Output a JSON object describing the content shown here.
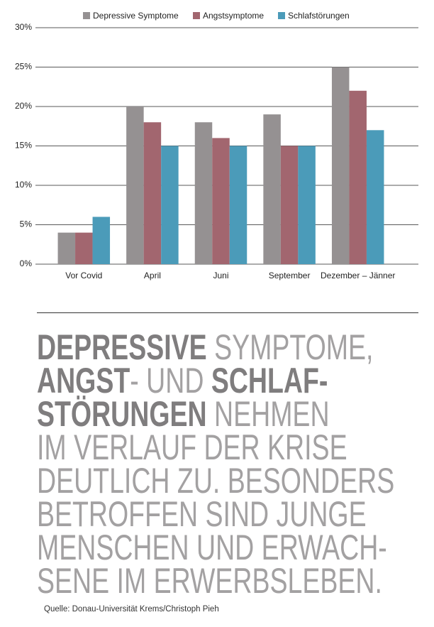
{
  "chart_data": {
    "type": "bar",
    "categories": [
      "Vor Covid",
      "April",
      "Juni",
      "September",
      "Dezember – Jänner"
    ],
    "series": [
      {
        "name": "Depressive Symptome",
        "color": "#959192",
        "values": [
          4,
          20,
          18,
          19,
          25
        ]
      },
      {
        "name": "Angstsymptome",
        "color": "#a2666f",
        "values": [
          4,
          18,
          16,
          15,
          22
        ]
      },
      {
        "name": "Schlafstörungen",
        "color": "#4b9bb9",
        "values": [
          6,
          15,
          15,
          15,
          17
        ]
      }
    ],
    "ylim": [
      0,
      30
    ],
    "yticks": [
      {
        "value": 0,
        "label": "0%"
      },
      {
        "value": 5,
        "label": "5%"
      },
      {
        "value": 10,
        "label": "10%"
      },
      {
        "value": 15,
        "label": "15%"
      },
      {
        "value": 20,
        "label": "20%"
      },
      {
        "value": 25,
        "label": "25%"
      },
      {
        "value": 30,
        "label": "30%"
      }
    ],
    "grid": true,
    "legend": "top"
  },
  "headline": {
    "lines": [
      [
        {
          "text": "DEPRESSIVE",
          "bold": true
        },
        {
          "text": " SYMPTOME,",
          "bold": false
        }
      ],
      [
        {
          "text": "ANGST",
          "bold": true
        },
        {
          "text": "- UND ",
          "bold": false
        },
        {
          "text": "SCHLAF-",
          "bold": true
        }
      ],
      [
        {
          "text": "STÖRUNGEN",
          "bold": true
        },
        {
          "text": " NEHMEN",
          "bold": false
        }
      ],
      [
        {
          "text": "IM VERLAUF DER KRISE",
          "bold": false
        }
      ],
      [
        {
          "text": "DEUTLICH ZU. BESONDERS",
          "bold": false
        }
      ],
      [
        {
          "text": "BETROFFEN SIND JUNGE",
          "bold": false
        }
      ],
      [
        {
          "text": "MENSCHEN UND ERWACH-",
          "bold": false
        }
      ],
      [
        {
          "text": "SENE IM ERWERBSLEBEN.",
          "bold": false
        }
      ]
    ]
  },
  "source": "Quelle: Donau-Universität Krems/Christoph Pieh"
}
